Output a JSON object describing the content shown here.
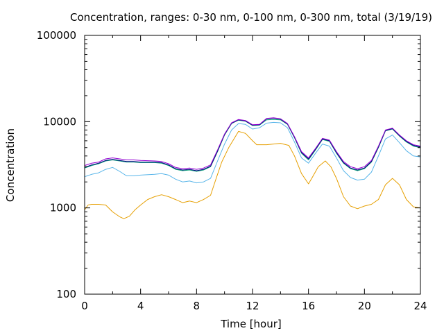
{
  "chart_data": {
    "type": "line",
    "title": "Concentration, ranges: 0-30 nm, 0-100 nm, 0-300 nm, total (3/19/19)",
    "xlabel": "Time [hour]",
    "ylabel": "Concentration",
    "xlim": [
      0,
      24
    ],
    "ylim": [
      100,
      100000
    ],
    "yscale": "log",
    "grid": false,
    "legend": "none",
    "x_ticks": [
      0,
      4,
      8,
      12,
      16,
      20,
      24
    ],
    "x_tick_labels": [
      "0",
      "4",
      "8",
      "12",
      "16",
      "20",
      "24"
    ],
    "y_ticks": [
      100,
      1000,
      10000,
      100000
    ],
    "y_tick_labels": [
      "100",
      "1000",
      "10000",
      "100000"
    ],
    "series": [
      {
        "color": "#e69f00",
        "points": [
          [
            0,
            950
          ],
          [
            0.25,
            1080
          ],
          [
            0.5,
            1100
          ],
          [
            1,
            1100
          ],
          [
            1.5,
            1080
          ],
          [
            2,
            900
          ],
          [
            2.5,
            790
          ],
          [
            2.8,
            750
          ],
          [
            3.2,
            800
          ],
          [
            3.6,
            950
          ],
          [
            4,
            1080
          ],
          [
            4.5,
            1250
          ],
          [
            5,
            1350
          ],
          [
            5.5,
            1420
          ],
          [
            6,
            1350
          ],
          [
            6.5,
            1250
          ],
          [
            7,
            1150
          ],
          [
            7.5,
            1200
          ],
          [
            8,
            1150
          ],
          [
            8.5,
            1250
          ],
          [
            9,
            1400
          ],
          [
            9.4,
            2200
          ],
          [
            9.8,
            3400
          ],
          [
            10.3,
            5000
          ],
          [
            11,
            7700
          ],
          [
            11.5,
            7300
          ],
          [
            12,
            6000
          ],
          [
            12.3,
            5400
          ],
          [
            13,
            5400
          ],
          [
            14,
            5600
          ],
          [
            14.6,
            5300
          ],
          [
            15,
            4000
          ],
          [
            15.5,
            2500
          ],
          [
            16,
            1900
          ],
          [
            16.3,
            2300
          ],
          [
            16.7,
            3000
          ],
          [
            17.2,
            3500
          ],
          [
            17.6,
            3000
          ],
          [
            18,
            2200
          ],
          [
            18.5,
            1350
          ],
          [
            19,
            1050
          ],
          [
            19.5,
            980
          ],
          [
            20,
            1050
          ],
          [
            20.5,
            1100
          ],
          [
            21,
            1250
          ],
          [
            21.5,
            1850
          ],
          [
            22,
            2200
          ],
          [
            22.5,
            1850
          ],
          [
            23,
            1250
          ],
          [
            23.5,
            1030
          ],
          [
            24,
            1000
          ]
        ]
      },
      {
        "color": "#56b4e9",
        "points": [
          [
            0,
            2300
          ],
          [
            0.5,
            2450
          ],
          [
            1,
            2550
          ],
          [
            1.5,
            2800
          ],
          [
            2,
            2950
          ],
          [
            2.5,
            2650
          ],
          [
            3,
            2350
          ],
          [
            3.5,
            2350
          ],
          [
            4,
            2400
          ],
          [
            5,
            2450
          ],
          [
            5.5,
            2500
          ],
          [
            6,
            2400
          ],
          [
            6.5,
            2150
          ],
          [
            7,
            2000
          ],
          [
            7.5,
            2050
          ],
          [
            8,
            1950
          ],
          [
            8.5,
            2000
          ],
          [
            9,
            2200
          ],
          [
            9.5,
            3500
          ],
          [
            10,
            5500
          ],
          [
            10.5,
            8000
          ],
          [
            11,
            9500
          ],
          [
            11.5,
            9300
          ],
          [
            12,
            8200
          ],
          [
            12.5,
            8500
          ],
          [
            13,
            9600
          ],
          [
            13.5,
            9800
          ],
          [
            14,
            9700
          ],
          [
            14.5,
            8500
          ],
          [
            15,
            5800
          ],
          [
            15.5,
            3800
          ],
          [
            16,
            3300
          ],
          [
            16.5,
            4300
          ],
          [
            17,
            5500
          ],
          [
            17.5,
            5200
          ],
          [
            18,
            3800
          ],
          [
            18.5,
            2700
          ],
          [
            19,
            2250
          ],
          [
            19.5,
            2100
          ],
          [
            20,
            2150
          ],
          [
            20.5,
            2600
          ],
          [
            21,
            4000
          ],
          [
            21.5,
            6300
          ],
          [
            22,
            7000
          ],
          [
            22.5,
            5700
          ],
          [
            23,
            4600
          ],
          [
            23.5,
            4000
          ],
          [
            24,
            3900
          ]
        ]
      },
      {
        "color": "#009e73",
        "points": [
          [
            0,
            2900
          ],
          [
            0.5,
            3100
          ],
          [
            1,
            3250
          ],
          [
            1.5,
            3500
          ],
          [
            2,
            3600
          ],
          [
            2.5,
            3500
          ],
          [
            3,
            3400
          ],
          [
            3.5,
            3400
          ],
          [
            4,
            3350
          ],
          [
            5,
            3350
          ],
          [
            5.5,
            3300
          ],
          [
            6,
            3100
          ],
          [
            6.5,
            2800
          ],
          [
            7,
            2700
          ],
          [
            7.5,
            2750
          ],
          [
            8,
            2650
          ],
          [
            8.5,
            2750
          ],
          [
            9,
            3000
          ],
          [
            9.5,
            4500
          ],
          [
            10,
            7000
          ],
          [
            10.5,
            9500
          ],
          [
            11,
            10400
          ],
          [
            11.5,
            10100
          ],
          [
            12,
            9000
          ],
          [
            12.5,
            9100
          ],
          [
            13,
            10500
          ],
          [
            13.5,
            10600
          ],
          [
            14,
            10500
          ],
          [
            14.5,
            9300
          ],
          [
            15,
            6500
          ],
          [
            15.5,
            4300
          ],
          [
            16,
            3600
          ],
          [
            16.5,
            4700
          ],
          [
            17,
            6200
          ],
          [
            17.5,
            5900
          ],
          [
            18,
            4300
          ],
          [
            18.5,
            3300
          ],
          [
            19,
            2850
          ],
          [
            19.5,
            2700
          ],
          [
            20,
            2850
          ],
          [
            20.5,
            3400
          ],
          [
            21,
            5000
          ],
          [
            21.5,
            7800
          ],
          [
            22,
            8200
          ],
          [
            22.5,
            6800
          ],
          [
            23,
            5800
          ],
          [
            23.5,
            5200
          ],
          [
            24,
            5000
          ]
        ]
      },
      {
        "color": "#000080",
        "points": [
          [
            0,
            2950
          ],
          [
            0.5,
            3150
          ],
          [
            1,
            3300
          ],
          [
            1.5,
            3550
          ],
          [
            2,
            3650
          ],
          [
            2.5,
            3550
          ],
          [
            3,
            3450
          ],
          [
            3.5,
            3450
          ],
          [
            4,
            3400
          ],
          [
            5,
            3400
          ],
          [
            5.5,
            3350
          ],
          [
            6,
            3150
          ],
          [
            6.5,
            2850
          ],
          [
            7,
            2750
          ],
          [
            7.5,
            2800
          ],
          [
            8,
            2700
          ],
          [
            8.5,
            2800
          ],
          [
            9,
            3050
          ],
          [
            9.5,
            4600
          ],
          [
            10,
            7100
          ],
          [
            10.5,
            9600
          ],
          [
            11,
            10500
          ],
          [
            11.5,
            10200
          ],
          [
            12,
            9100
          ],
          [
            12.5,
            9200
          ],
          [
            13,
            10800
          ],
          [
            13.5,
            11000
          ],
          [
            14,
            10700
          ],
          [
            14.5,
            9400
          ],
          [
            15,
            6600
          ],
          [
            15.5,
            4400
          ],
          [
            16,
            3700
          ],
          [
            16.5,
            4800
          ],
          [
            17,
            6300
          ],
          [
            17.5,
            6000
          ],
          [
            18,
            4400
          ],
          [
            18.5,
            3350
          ],
          [
            19,
            2900
          ],
          [
            19.5,
            2750
          ],
          [
            20,
            2900
          ],
          [
            20.5,
            3450
          ],
          [
            21,
            5100
          ],
          [
            21.5,
            7900
          ],
          [
            22,
            8300
          ],
          [
            22.5,
            6900
          ],
          [
            23,
            5900
          ],
          [
            23.5,
            5300
          ],
          [
            24,
            5100
          ]
        ]
      },
      {
        "color": "#9400d3",
        "points": [
          [
            0,
            3100
          ],
          [
            0.5,
            3300
          ],
          [
            1,
            3400
          ],
          [
            1.5,
            3700
          ],
          [
            2,
            3800
          ],
          [
            2.5,
            3700
          ],
          [
            3,
            3600
          ],
          [
            3.5,
            3600
          ],
          [
            4,
            3550
          ],
          [
            5,
            3500
          ],
          [
            5.5,
            3450
          ],
          [
            6,
            3250
          ],
          [
            6.5,
            2950
          ],
          [
            7,
            2850
          ],
          [
            7.5,
            2900
          ],
          [
            8,
            2800
          ],
          [
            8.5,
            2900
          ],
          [
            9,
            3150
          ],
          [
            9.5,
            4700
          ],
          [
            10,
            7200
          ],
          [
            10.5,
            9700
          ],
          [
            11,
            10600
          ],
          [
            11.5,
            10300
          ],
          [
            12,
            9200
          ],
          [
            12.5,
            9300
          ],
          [
            13,
            10900
          ],
          [
            13.5,
            11100
          ],
          [
            14,
            10800
          ],
          [
            14.5,
            9500
          ],
          [
            15,
            6700
          ],
          [
            15.5,
            4500
          ],
          [
            16,
            3800
          ],
          [
            16.5,
            4900
          ],
          [
            17,
            6400
          ],
          [
            17.5,
            6100
          ],
          [
            18,
            4500
          ],
          [
            18.5,
            3450
          ],
          [
            19,
            3000
          ],
          [
            19.5,
            2850
          ],
          [
            20,
            3000
          ],
          [
            20.5,
            3550
          ],
          [
            21,
            5200
          ],
          [
            21.5,
            8000
          ],
          [
            22,
            8400
          ],
          [
            22.5,
            7000
          ],
          [
            23,
            6000
          ],
          [
            23.5,
            5400
          ],
          [
            24,
            5200
          ]
        ]
      }
    ]
  }
}
